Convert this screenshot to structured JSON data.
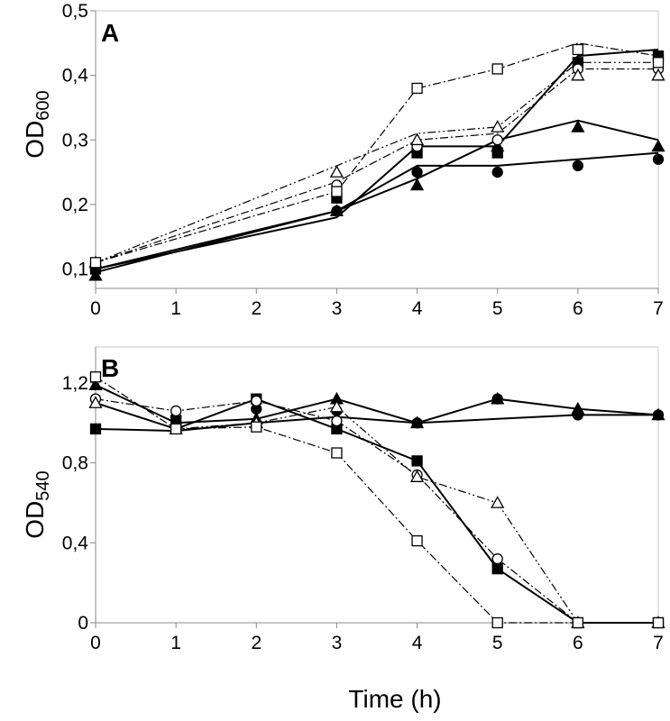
{
  "chart_data": [
    {
      "type": "line",
      "panel": "A",
      "ylabel": "OD",
      "ylabel_sub": "600",
      "xlabel": "",
      "xlim": [
        0,
        7
      ],
      "ylim": [
        0.07,
        0.5
      ],
      "x_ticks": [
        "0",
        "1",
        "2",
        "3",
        "4",
        "5",
        "6",
        "7"
      ],
      "y_ticks": [
        {
          "v": 0.1,
          "label": "0,1"
        },
        {
          "v": 0.2,
          "label": "0,2"
        },
        {
          "v": 0.3,
          "label": "0,3"
        },
        {
          "v": 0.4,
          "label": "0,4"
        },
        {
          "v": 0.5,
          "label": "0,5"
        }
      ],
      "grid": false,
      "series": [
        {
          "marker": "filled-circle",
          "line": "solid",
          "x": [
            0,
            3,
            4,
            5,
            6,
            7
          ],
          "y": [
            0.1,
            0.19,
            0.25,
            0.25,
            0.26,
            0.27
          ],
          "trend": [
            [
              0,
              0.1
            ],
            [
              3,
              0.19
            ],
            [
              4,
              0.26
            ],
            [
              5,
              0.26
            ],
            [
              7,
              0.28
            ]
          ]
        },
        {
          "marker": "filled-triangle",
          "line": "solid",
          "x": [
            0,
            3,
            4,
            5,
            6,
            7
          ],
          "y": [
            0.09,
            0.19,
            0.23,
            0.29,
            0.32,
            0.29
          ],
          "trend": [
            [
              0,
              0.095
            ],
            [
              3,
              0.19
            ],
            [
              4,
              0.24
            ],
            [
              5,
              0.3
            ],
            [
              6,
              0.33
            ],
            [
              7,
              0.3
            ]
          ]
        },
        {
          "marker": "filled-square",
          "line": "solid",
          "x": [
            0,
            3,
            4,
            5,
            6,
            7
          ],
          "y": [
            0.1,
            0.21,
            0.28,
            0.28,
            0.42,
            0.43
          ],
          "trend": [
            [
              0,
              0.1
            ],
            [
              3,
              0.18
            ],
            [
              4,
              0.29
            ],
            [
              5,
              0.29
            ],
            [
              6,
              0.43
            ],
            [
              7,
              0.44
            ]
          ]
        },
        {
          "marker": "open-circle",
          "line": "dashdot",
          "x": [
            0,
            3,
            4,
            5,
            6,
            7
          ],
          "y": [
            0.11,
            0.23,
            0.29,
            0.3,
            0.41,
            0.41
          ],
          "trend": [
            [
              0,
              0.11
            ],
            [
              3,
              0.235
            ],
            [
              4,
              0.3
            ],
            [
              5,
              0.31
            ],
            [
              6,
              0.41
            ],
            [
              7,
              0.41
            ]
          ]
        },
        {
          "marker": "open-triangle",
          "line": "dashdotdot",
          "x": [
            0,
            3,
            4,
            5,
            6,
            7
          ],
          "y": [
            0.11,
            0.25,
            0.3,
            0.32,
            0.4,
            0.4
          ],
          "trend": [
            [
              0,
              0.11
            ],
            [
              3,
              0.26
            ],
            [
              4,
              0.31
            ],
            [
              5,
              0.32
            ],
            [
              6,
              0.42
            ],
            [
              7,
              0.42
            ]
          ]
        },
        {
          "marker": "open-square",
          "line": "dashdot",
          "x": [
            0,
            3,
            4,
            5,
            6,
            7
          ],
          "y": [
            0.11,
            0.22,
            0.38,
            0.41,
            0.44,
            0.42
          ],
          "trend": [
            [
              0,
              0.11
            ],
            [
              3,
              0.22
            ],
            [
              4,
              0.38
            ],
            [
              5,
              0.41
            ],
            [
              6,
              0.45
            ],
            [
              7,
              0.43
            ]
          ]
        }
      ]
    },
    {
      "type": "line",
      "panel": "B",
      "ylabel": "OD",
      "ylabel_sub": "540",
      "xlabel": "Time (h)",
      "xlim": [
        0,
        7
      ],
      "ylim": [
        0,
        1.38
      ],
      "x_ticks": [
        "0",
        "1",
        "2",
        "3",
        "4",
        "5",
        "6",
        "7"
      ],
      "y_ticks": [
        {
          "v": 0,
          "label": "0"
        },
        {
          "v": 0.4,
          "label": "0,4"
        },
        {
          "v": 0.8,
          "label": "0,8"
        },
        {
          "v": 1.2,
          "label": "1,2"
        }
      ],
      "grid": false,
      "series": [
        {
          "marker": "filled-circle",
          "line": "solid",
          "x": [
            0,
            1,
            2,
            3,
            4,
            5,
            6,
            7
          ],
          "y": [
            1.12,
            1.03,
            1.07,
            1.06,
            1.0,
            1.12,
            1.04,
            1.04
          ],
          "trend": [
            [
              0,
              0.97
            ],
            [
              1,
              0.96
            ],
            [
              2,
              1.0
            ],
            [
              3,
              1.03
            ],
            [
              4,
              1.0
            ],
            [
              5,
              1.02
            ],
            [
              6,
              1.04
            ],
            [
              7,
              1.04
            ]
          ]
        },
        {
          "marker": "filled-triangle",
          "line": "solid",
          "x": [
            0,
            1,
            2,
            3,
            4,
            5,
            6,
            7
          ],
          "y": [
            1.19,
            1.0,
            1.02,
            1.12,
            1.0,
            1.12,
            1.07,
            1.04
          ],
          "trend": [
            [
              0,
              1.19
            ],
            [
              1,
              1.0
            ],
            [
              2,
              1.02
            ],
            [
              3,
              1.12
            ],
            [
              4,
              1.0
            ],
            [
              5,
              1.12
            ],
            [
              6,
              1.07
            ],
            [
              7,
              1.04
            ]
          ]
        },
        {
          "marker": "filled-square",
          "line": "solid",
          "x": [
            0,
            1,
            2,
            3,
            4,
            5,
            6,
            7
          ],
          "y": [
            0.97,
            1.01,
            1.12,
            0.97,
            0.81,
            0.27,
            0.0,
            0.0
          ],
          "trend": [
            [
              0,
              1.1
            ],
            [
              1,
              0.97
            ],
            [
              2,
              1.12
            ],
            [
              3,
              0.97
            ],
            [
              4,
              0.81
            ],
            [
              5,
              0.27
            ],
            [
              6,
              0.0
            ],
            [
              7,
              0.0
            ]
          ]
        },
        {
          "marker": "open-circle",
          "line": "dashdot",
          "x": [
            0,
            1,
            2,
            3,
            4,
            5,
            6,
            7
          ],
          "y": [
            1.12,
            1.06,
            1.11,
            1.01,
            0.74,
            0.32,
            0.0,
            0.0
          ],
          "trend": [
            [
              0,
              1.12
            ],
            [
              1,
              1.06
            ],
            [
              2,
              1.11
            ],
            [
              3,
              1.01
            ],
            [
              4,
              0.74
            ],
            [
              5,
              0.32
            ],
            [
              6,
              0.0
            ],
            [
              7,
              0.0
            ]
          ]
        },
        {
          "marker": "open-triangle",
          "line": "dashdotdot",
          "x": [
            0,
            1,
            2,
            3,
            4,
            5,
            6,
            7
          ],
          "y": [
            1.1,
            0.97,
            1.0,
            1.08,
            0.73,
            0.6,
            0.0,
            0.0
          ],
          "trend": [
            [
              0,
              1.1
            ],
            [
              1,
              0.97
            ],
            [
              2,
              1.0
            ],
            [
              3,
              1.08
            ],
            [
              4,
              0.73
            ],
            [
              5,
              0.6
            ],
            [
              6,
              0.0
            ],
            [
              7,
              0.0
            ]
          ]
        },
        {
          "marker": "open-square",
          "line": "dashdot",
          "x": [
            0,
            1,
            2,
            3,
            4,
            5,
            6,
            7
          ],
          "y": [
            1.23,
            0.97,
            0.98,
            0.85,
            0.41,
            0.0,
            0.0,
            0.0
          ],
          "trend": [
            [
              0,
              1.23
            ],
            [
              1,
              0.97
            ],
            [
              2,
              0.98
            ],
            [
              3,
              0.85
            ],
            [
              4,
              0.41
            ],
            [
              5,
              0.0
            ],
            [
              6,
              0.0
            ],
            [
              7,
              0.0
            ]
          ]
        }
      ]
    }
  ]
}
